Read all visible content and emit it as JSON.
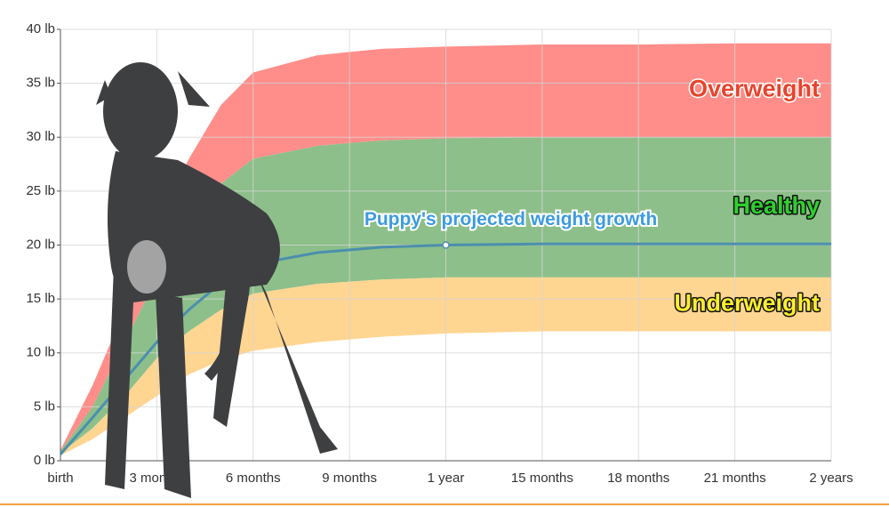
{
  "chart_data": {
    "type": "band-area",
    "x": [
      0,
      1,
      2,
      3,
      4,
      5,
      6,
      8,
      10,
      12,
      15,
      18,
      21,
      24
    ],
    "xlim": [
      0,
      24
    ],
    "xticks": [
      {
        "value": 0,
        "label": "birth"
      },
      {
        "value": 3,
        "label": "3 months"
      },
      {
        "value": 6,
        "label": "6 months"
      },
      {
        "value": 9,
        "label": "9 months"
      },
      {
        "value": 12,
        "label": "1 year"
      },
      {
        "value": 15,
        "label": "15 months"
      },
      {
        "value": 18,
        "label": "18 months"
      },
      {
        "value": 21,
        "label": "21 months"
      },
      {
        "value": 24,
        "label": "2 years"
      }
    ],
    "ylim": [
      0,
      40
    ],
    "yticks": [
      {
        "value": 0,
        "label": "0 lb"
      },
      {
        "value": 5,
        "label": "5 lb"
      },
      {
        "value": 10,
        "label": "10 lb"
      },
      {
        "value": 15,
        "label": "15 lb"
      },
      {
        "value": 20,
        "label": "20 lb"
      },
      {
        "value": 25,
        "label": "25 lb"
      },
      {
        "value": 30,
        "label": "30 lb"
      },
      {
        "value": 35,
        "label": "35 lb"
      },
      {
        "value": 40,
        "label": "40 lb"
      }
    ],
    "grid": true,
    "bands": [
      {
        "name": "Overweight",
        "color": "#ff8e8a",
        "text_color": "#e8432c",
        "low": [
          0.9,
          5,
          11,
          17,
          22,
          25.7,
          28,
          29.2,
          29.7,
          29.9,
          30,
          30,
          30,
          30
        ],
        "values": [
          1,
          7,
          14,
          22,
          28,
          33,
          36,
          37.6,
          38.2,
          38.4,
          38.6,
          38.6,
          38.7,
          38.7
        ]
      },
      {
        "name": "Healthy",
        "color": "#8dbf8a",
        "text_color": "#2fcf2f",
        "low": [
          0.7,
          3,
          6,
          9.5,
          12,
          14,
          15.5,
          16.4,
          16.8,
          17,
          17,
          17,
          17,
          17
        ],
        "values": [
          0.9,
          5,
          11,
          17,
          22,
          25.7,
          28,
          29.2,
          29.7,
          29.9,
          30,
          30,
          30,
          30
        ]
      },
      {
        "name": "Underweight",
        "color": "#ffd592",
        "text_color": "#fbee2e",
        "low": [
          0.5,
          2,
          4,
          6,
          8,
          9.3,
          10.2,
          11,
          11.5,
          11.8,
          12,
          12,
          12,
          12
        ],
        "values": [
          0.7,
          3,
          6,
          9.5,
          12,
          14,
          15.5,
          16.4,
          16.8,
          17,
          17,
          17,
          17,
          17
        ]
      }
    ],
    "series": [
      {
        "name": "Puppy's projected weight growth",
        "color": "#4b8fae",
        "text_color": "#3d9be0",
        "values": [
          0.6,
          4,
          7.5,
          11,
          14,
          16.5,
          18.2,
          19.3,
          19.8,
          20,
          20.1,
          20.1,
          20.1,
          20.1
        ],
        "highlight_index": 9
      }
    ]
  }
}
